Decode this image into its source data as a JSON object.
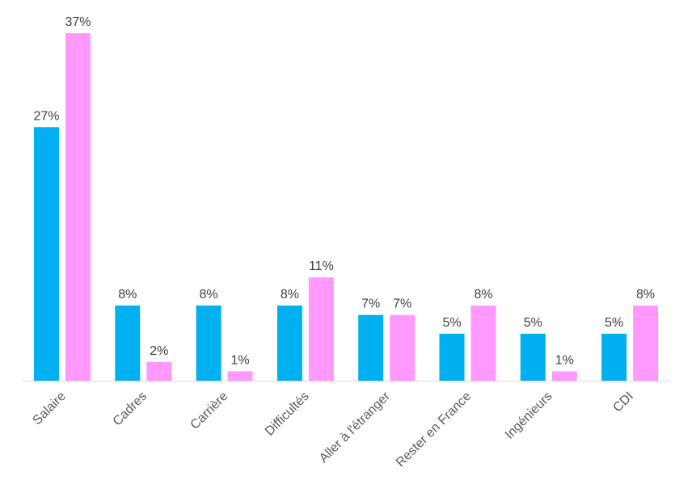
{
  "chart_data": {
    "type": "bar",
    "title": "",
    "xlabel": "",
    "ylabel": "",
    "ylim": [
      0,
      40
    ],
    "grid": false,
    "legend": "none",
    "categories": [
      "Salaire",
      "Cadres",
      "Carrière",
      "Difficultés",
      "Aller à l'étranger",
      "Rester en France",
      "Ingénieurs",
      "CDI"
    ],
    "series": [
      {
        "color": "#00b0f0",
        "values": [
          27,
          8,
          8,
          8,
          7,
          5,
          5,
          5
        ],
        "labels": [
          "27%",
          "8%",
          "8%",
          "8%",
          "7%",
          "5%",
          "5%",
          "5%"
        ]
      },
      {
        "color": "#ff99ff",
        "values": [
          37,
          2,
          1,
          11,
          7,
          8,
          1,
          8
        ],
        "labels": [
          "37%",
          "2%",
          "1%",
          "11%",
          "7%",
          "8%",
          "1%",
          "8%"
        ]
      }
    ]
  }
}
